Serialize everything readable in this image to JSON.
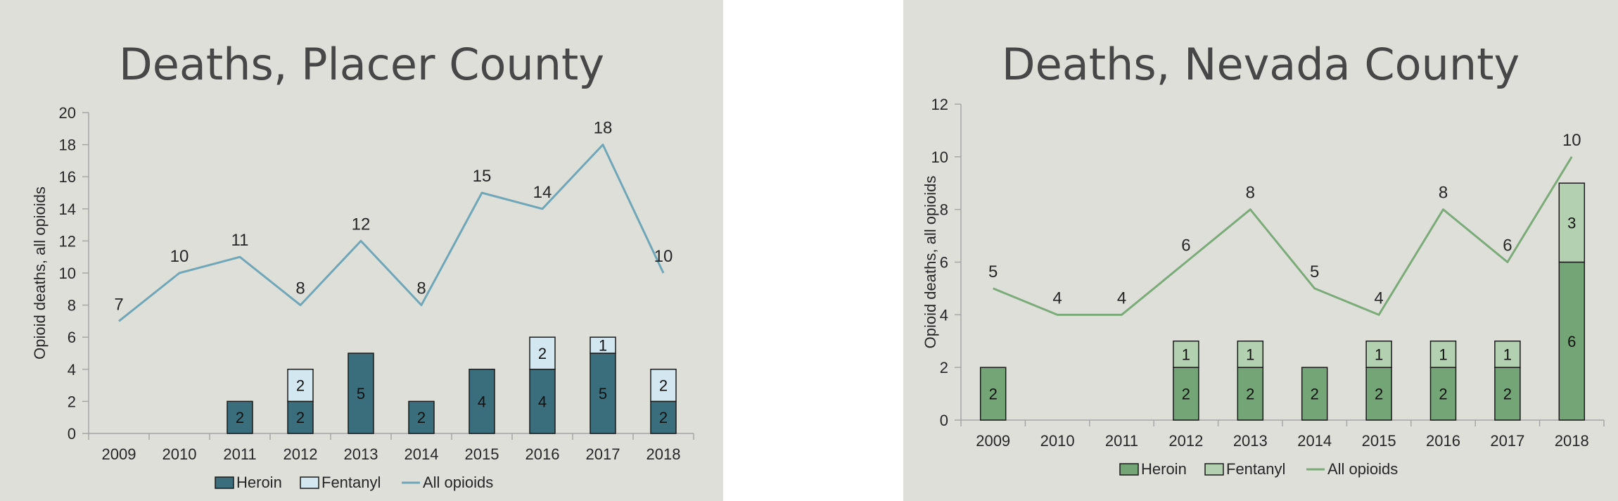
{
  "chart_data": [
    {
      "type": "bar",
      "title": "Deaths, Placer County",
      "xlabel": "",
      "ylabel": "Opioid deaths, all opioids",
      "ylim": [
        0,
        20
      ],
      "yticks": [
        0,
        2,
        4,
        6,
        8,
        10,
        12,
        14,
        16,
        18,
        20
      ],
      "categories": [
        "2009",
        "2010",
        "2011",
        "2012",
        "2013",
        "2014",
        "2015",
        "2016",
        "2017",
        "2018"
      ],
      "series": [
        {
          "name": "Heroin",
          "type": "stacked-bar",
          "values": [
            0,
            0,
            2,
            2,
            5,
            2,
            4,
            4,
            5,
            2
          ],
          "color": "#3b6e7c"
        },
        {
          "name": "Fentanyl",
          "type": "stacked-bar",
          "values": [
            0,
            0,
            0,
            2,
            0,
            0,
            0,
            2,
            1,
            2
          ],
          "color": "#d3e7f0"
        },
        {
          "name": "All opioids",
          "type": "line",
          "values": [
            7,
            10,
            11,
            8,
            12,
            8,
            15,
            14,
            18,
            10
          ],
          "color": "#6fa7b8"
        }
      ],
      "grid": false,
      "legend": "bottom"
    },
    {
      "type": "bar",
      "title": "Deaths, Nevada County",
      "xlabel": "",
      "ylabel": "Opioid deaths, all opioids",
      "ylim": [
        0,
        12
      ],
      "yticks": [
        0,
        2,
        4,
        6,
        8,
        10,
        12
      ],
      "categories": [
        "2009",
        "2010",
        "2011",
        "2012",
        "2013",
        "2014",
        "2015",
        "2016",
        "2017",
        "2018"
      ],
      "series": [
        {
          "name": "Heroin",
          "type": "stacked-bar",
          "values": [
            2,
            0,
            0,
            2,
            2,
            2,
            2,
            2,
            2,
            6
          ],
          "color": "#74a577"
        },
        {
          "name": "Fentanyl",
          "type": "stacked-bar",
          "values": [
            0,
            0,
            0,
            1,
            1,
            0,
            1,
            1,
            1,
            3
          ],
          "color": "#b3d1b1"
        },
        {
          "name": "All opioids",
          "type": "line",
          "values": [
            5,
            4,
            4,
            6,
            8,
            5,
            4,
            8,
            6,
            10
          ],
          "color": "#7aab78"
        }
      ],
      "grid": false,
      "legend": "bottom"
    }
  ]
}
